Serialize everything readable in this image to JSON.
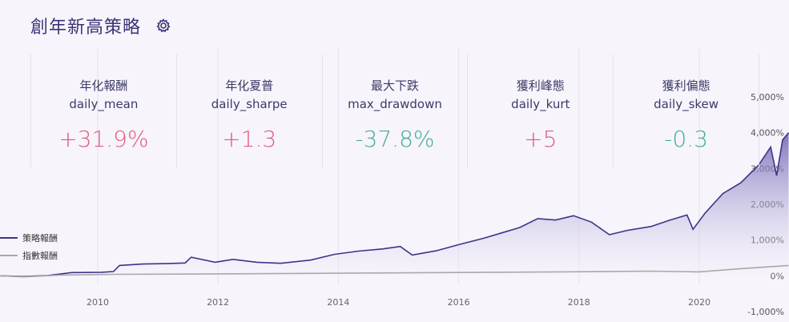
{
  "page": {
    "title": "創年新高策略",
    "settings_icon": "gear-icon"
  },
  "metrics": [
    {
      "label": "年化報酬",
      "key": "daily_mean",
      "value": "+31.9%",
      "sign": "pos"
    },
    {
      "label": "年化夏普",
      "key": "daily_sharpe",
      "value": "+1.3",
      "sign": "pos"
    },
    {
      "label": "最大下跌",
      "key": "max_drawdown",
      "value": "-37.8%",
      "sign": "neg"
    },
    {
      "label": "獲利峰態",
      "key": "daily_kurt",
      "value": "+5",
      "sign": "pos"
    },
    {
      "label": "獲利偏態",
      "key": "daily_skew",
      "value": "-0.3",
      "sign": "neg"
    }
  ],
  "colors": {
    "strategy": "#3e3489",
    "index": "#a9a9a9",
    "positive": "#e15b7a",
    "negative": "#3fae95"
  },
  "chart_data": {
    "type": "line",
    "x_ticks": [
      "2010",
      "2012",
      "2014",
      "2016",
      "2018",
      "2020"
    ],
    "y_ticks": [
      "5,000%",
      "4,000%",
      "3,000%",
      "2,000%",
      "1,000%",
      "0%",
      "-1,000%"
    ],
    "ylim": [
      -1000,
      5000
    ],
    "xlim": [
      2008.6,
      2021.8
    ],
    "series": [
      {
        "name": "策略報酬",
        "points": [
          [
            2008.6,
            0
          ],
          [
            2009.0,
            -20
          ],
          [
            2009.4,
            10
          ],
          [
            2009.8,
            90
          ],
          [
            2010.3,
            100
          ],
          [
            2010.5,
            120
          ],
          [
            2010.6,
            290
          ],
          [
            2011.0,
            330
          ],
          [
            2011.4,
            340
          ],
          [
            2011.7,
            360
          ],
          [
            2011.8,
            520
          ],
          [
            2012.2,
            380
          ],
          [
            2012.5,
            460
          ],
          [
            2012.9,
            380
          ],
          [
            2013.3,
            350
          ],
          [
            2013.8,
            440
          ],
          [
            2014.2,
            600
          ],
          [
            2014.6,
            690
          ],
          [
            2015.0,
            750
          ],
          [
            2015.3,
            820
          ],
          [
            2015.5,
            580
          ],
          [
            2015.9,
            700
          ],
          [
            2016.3,
            880
          ],
          [
            2016.7,
            1050
          ],
          [
            2017.0,
            1200
          ],
          [
            2017.3,
            1350
          ],
          [
            2017.6,
            1600
          ],
          [
            2017.9,
            1560
          ],
          [
            2018.2,
            1680
          ],
          [
            2018.5,
            1500
          ],
          [
            2018.8,
            1150
          ],
          [
            2019.1,
            1270
          ],
          [
            2019.5,
            1380
          ],
          [
            2019.8,
            1550
          ],
          [
            2020.1,
            1700
          ],
          [
            2020.2,
            1300
          ],
          [
            2020.4,
            1750
          ],
          [
            2020.7,
            2300
          ],
          [
            2021.0,
            2600
          ],
          [
            2021.3,
            3100
          ],
          [
            2021.5,
            3600
          ],
          [
            2021.6,
            2800
          ],
          [
            2021.7,
            3800
          ],
          [
            2021.8,
            4000
          ]
        ]
      },
      {
        "name": "指數報酬",
        "points": [
          [
            2008.6,
            0
          ],
          [
            2009.0,
            -30
          ],
          [
            2009.6,
            20
          ],
          [
            2010.5,
            40
          ],
          [
            2012.0,
            50
          ],
          [
            2014.0,
            70
          ],
          [
            2016.0,
            90
          ],
          [
            2018.0,
            110
          ],
          [
            2019.5,
            130
          ],
          [
            2020.3,
            110
          ],
          [
            2021.0,
            200
          ],
          [
            2021.8,
            290
          ]
        ]
      }
    ],
    "legend_position": "left"
  }
}
